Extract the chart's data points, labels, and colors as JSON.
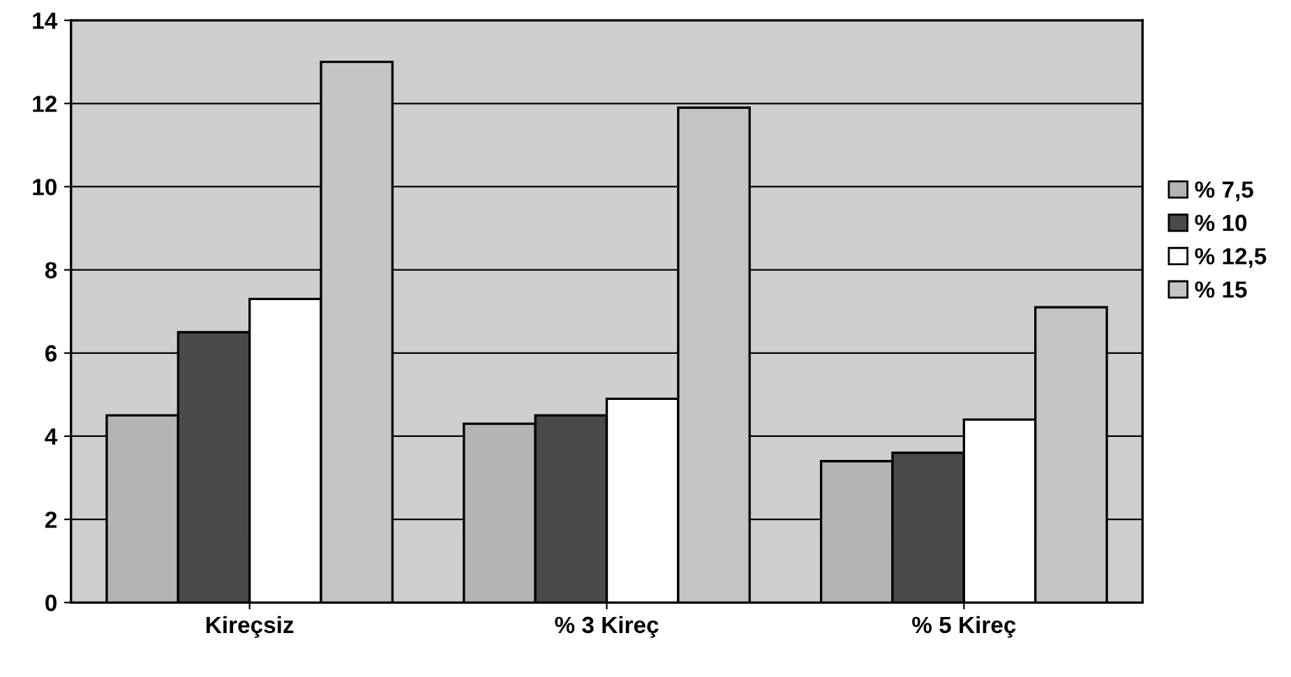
{
  "chart_data": {
    "type": "bar",
    "categories": [
      "Kireçsiz",
      "% 3 Kireç",
      "% 5 Kireç"
    ],
    "series": [
      {
        "name": "% 7,5",
        "color": "#b4b4b4",
        "values": [
          4.5,
          4.3,
          3.4
        ]
      },
      {
        "name": "% 10",
        "color": "#4a4a4a",
        "values": [
          6.5,
          4.5,
          3.6
        ]
      },
      {
        "name": "% 12,5",
        "color": "#ffffff",
        "values": [
          7.3,
          4.9,
          4.4
        ]
      },
      {
        "name": "% 15",
        "color": "#c4c4c4",
        "values": [
          13.0,
          11.9,
          7.1
        ]
      }
    ],
    "ylim": [
      0,
      14
    ],
    "yticks": [
      0,
      2,
      4,
      6,
      8,
      10,
      12,
      14
    ],
    "grid": "y",
    "legend": "right"
  }
}
